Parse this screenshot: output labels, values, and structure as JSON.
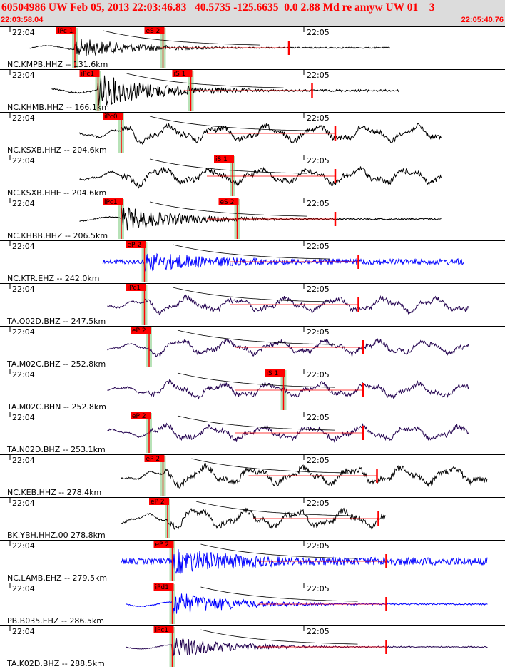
{
  "header": {
    "title": "60504986 UW Feb 05, 2013 22:03:46.83   40.5735 -125.6635  0.0 2.88 Md re amyw UW 01    3",
    "start_time": "22:03:58.04",
    "end_time": "22:05:40.76"
  },
  "time_labels": {
    "first": "22:04",
    "second": "22:05"
  },
  "colors": {
    "header_bg": "#dcdcdc",
    "text_red": "#ff0000",
    "pick_red": "#ff0000",
    "wave_black": "#000000",
    "wave_blue": "#0000ff",
    "wave_purple": "#2a0a55",
    "band_green": "#aaddaa"
  },
  "channels": [
    {
      "label": "NC.KMPB.HHZ -- 131.6km",
      "color": "black",
      "amp": 0.5,
      "style": "burst",
      "start": 0.0,
      "end": 0.78,
      "onset": 0.1,
      "picks": [
        {
          "label": "iPc 1",
          "pos": 0.1
        },
        {
          "label": "eS 2",
          "pos": 0.29
        }
      ]
    },
    {
      "label": "NC.KHMB.HHZ -- 166.1km",
      "color": "black",
      "amp": 0.8,
      "style": "burst",
      "start": 0.05,
      "end": 0.8,
      "onset": 0.15,
      "picks": [
        {
          "label": "iPc1",
          "pos": 0.15
        },
        {
          "label": "iS 1",
          "pos": 0.35
        }
      ]
    },
    {
      "label": "NC.KSXB.HHZ -- 204.6km",
      "color": "black",
      "amp": 0.9,
      "style": "wavy",
      "start": 0.11,
      "end": 0.89,
      "onset": 0.2,
      "picks": [
        {
          "label": "iPc0",
          "pos": 0.2
        }
      ]
    },
    {
      "label": "NC.KSXB.HHE -- 204.6km",
      "color": "black",
      "amp": 0.9,
      "style": "wavy",
      "start": 0.11,
      "end": 0.89,
      "onset": 0.2,
      "picks": [
        {
          "label": "iS 1",
          "pos": 0.44
        }
      ]
    },
    {
      "label": "NC.KHBB.HHZ -- 206.5km",
      "color": "black",
      "amp": 0.6,
      "style": "burst",
      "start": 0.11,
      "end": 0.89,
      "onset": 0.2,
      "picks": [
        {
          "label": "iPc1",
          "pos": 0.2
        },
        {
          "label": "eS 2",
          "pos": 0.45
        }
      ]
    },
    {
      "label": "NC.KTR.EHZ -- 242.0km",
      "color": "blue",
      "amp": 0.6,
      "style": "noise",
      "start": 0.16,
      "end": 0.94,
      "onset": 0.25,
      "picks": [
        {
          "label": "eP 2",
          "pos": 0.25
        }
      ]
    },
    {
      "label": "TA.O02D.BHZ -- 247.5km",
      "color": "purple",
      "amp": 0.8,
      "style": "wavy",
      "start": 0.17,
      "end": 0.95,
      "onset": 0.25,
      "picks": [
        {
          "label": "iPc1",
          "pos": 0.25
        }
      ]
    },
    {
      "label": "TA.M02C.BHZ -- 252.8km",
      "color": "purple",
      "amp": 0.8,
      "style": "wavy",
      "start": 0.17,
      "end": 0.95,
      "onset": 0.26,
      "picks": [
        {
          "label": "eP 2",
          "pos": 0.26
        }
      ]
    },
    {
      "label": "TA.M02C.BHN -- 252.8km",
      "color": "purple",
      "amp": 0.8,
      "style": "wavy",
      "start": 0.17,
      "end": 0.95,
      "onset": 0.26,
      "picks": [
        {
          "label": "iS 1",
          "pos": 0.55
        }
      ]
    },
    {
      "label": "TA.N02D.BHZ -- 253.1km",
      "color": "purple",
      "amp": 0.8,
      "style": "wavy",
      "start": 0.17,
      "end": 0.95,
      "onset": 0.26,
      "picks": [
        {
          "label": "eP 2",
          "pos": 0.26
        }
      ]
    },
    {
      "label": "NC.KEB.HHZ -- 278.4km",
      "color": "black",
      "amp": 1.0,
      "style": "wavy",
      "start": 0.2,
      "end": 0.99,
      "onset": 0.29,
      "picks": [
        {
          "label": "eP 2",
          "pos": 0.29
        }
      ]
    },
    {
      "label": "BK.YBH.HHZ.00 278.8km",
      "color": "black",
      "amp": 1.0,
      "style": "wavy",
      "start": 0.2,
      "end": 0.77,
      "onset": 0.3,
      "picks": [
        {
          "label": "eP 2",
          "pos": 0.3
        }
      ]
    },
    {
      "label": "NC.LAMB.EHZ -- 279.5km",
      "color": "blue",
      "amp": 0.8,
      "style": "noise",
      "start": 0.2,
      "end": 0.99,
      "onset": 0.31,
      "picks": [
        {
          "label": "eP 2",
          "pos": 0.31
        }
      ]
    },
    {
      "label": "PB.B035.EHZ -- 286.5km",
      "color": "blue",
      "amp": 0.6,
      "style": "burst",
      "start": 0.21,
      "end": 0.99,
      "onset": 0.31,
      "picks": [
        {
          "label": "iPd1",
          "pos": 0.31
        }
      ]
    },
    {
      "label": "TA.K02D.BHZ -- 288.5km",
      "color": "purple",
      "amp": 0.5,
      "style": "burst",
      "start": 0.21,
      "end": 0.99,
      "onset": 0.31,
      "picks": [
        {
          "label": "iPc1",
          "pos": 0.31
        }
      ]
    }
  ]
}
